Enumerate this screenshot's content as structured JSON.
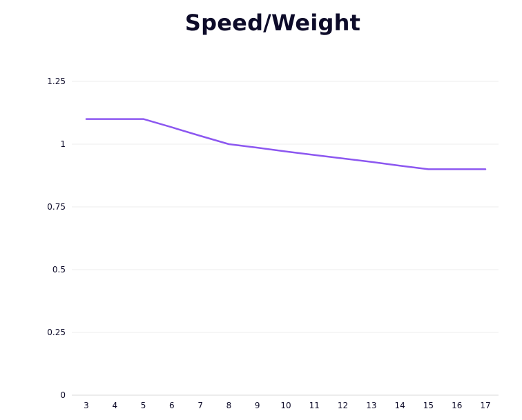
{
  "chart_data": {
    "type": "line",
    "title": "Speed/Weight",
    "xlabel": "",
    "ylabel": "",
    "categories": [
      "3",
      "4",
      "5",
      "6",
      "7",
      "8",
      "9",
      "10",
      "11",
      "12",
      "13",
      "14",
      "15",
      "16",
      "17"
    ],
    "y_ticks": [
      "0",
      "0.25",
      "0.5",
      "0.75",
      "1",
      "1.25"
    ],
    "ylim": [
      0,
      1.25
    ],
    "grid": true,
    "line_color": "#8c57f0",
    "series": [
      {
        "values": [
          1.1,
          1.1,
          1.1,
          1.067,
          1.033,
          1.0,
          0.986,
          0.971,
          0.957,
          0.943,
          0.929,
          0.914,
          0.9,
          0.9,
          0.9
        ]
      }
    ]
  }
}
